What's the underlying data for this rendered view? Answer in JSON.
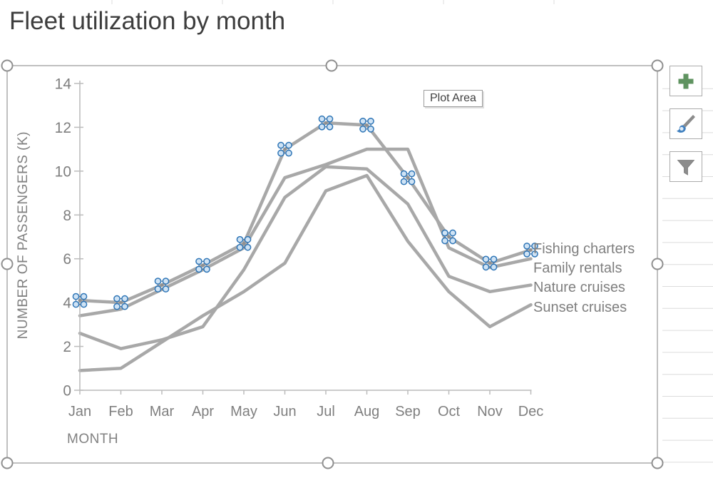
{
  "tooltip": {
    "text": "Plot Area"
  },
  "side_buttons": [
    {
      "id": "chart-elements-button",
      "icon": "plus-icon",
      "icon_color": "#5f9360"
    },
    {
      "id": "chart-styles-button",
      "icon": "paintbrush-icon",
      "icon_color": "#8c8c8c",
      "icon_accent": "#3f7fbf"
    },
    {
      "id": "chart-filters-button",
      "icon": "funnel-icon",
      "icon_color": "#8c8c8c"
    }
  ],
  "colors": {
    "series_line": "#a8a8a8",
    "selected_marker_stroke": "#2e75b6",
    "selected_marker_fill": "#cfe3f5",
    "axis": "#bcbcbc",
    "text_gray": "#7f7f7f",
    "selection_border": "#a6a6a6",
    "worksheet_gridline": "#dcdcdc"
  },
  "chart_data": {
    "type": "line",
    "title": "Fleet utilization by month",
    "xlabel": "MONTH",
    "ylabel": "NUMBER OF PASSENGERS (K)",
    "ylim": [
      0,
      14
    ],
    "y_ticks": [
      "0",
      "2",
      "4",
      "6",
      "8",
      "10",
      "12",
      "14"
    ],
    "grid": false,
    "legend_position": "end-of-line labels",
    "categories": [
      "Jan",
      "Feb",
      "Mar",
      "Apr",
      "May",
      "Jun",
      "Jul",
      "Aug",
      "Sep",
      "Oct",
      "Nov",
      "Dec"
    ],
    "series": [
      {
        "name": "Fishing charters",
        "selected": true,
        "values": [
          4.1,
          4.0,
          4.8,
          5.7,
          6.7,
          11.0,
          12.2,
          12.1,
          9.7,
          7.0,
          5.8,
          6.4
        ]
      },
      {
        "name": "Family rentals",
        "selected": false,
        "values": [
          3.4,
          3.7,
          4.6,
          5.5,
          6.5,
          9.7,
          10.3,
          11.0,
          11.0,
          6.5,
          5.6,
          6.0
        ]
      },
      {
        "name": "Nature cruises",
        "selected": false,
        "values": [
          2.6,
          1.9,
          2.3,
          2.9,
          5.5,
          8.8,
          10.2,
          10.1,
          8.5,
          5.2,
          4.5,
          4.8
        ]
      },
      {
        "name": "Sunset cruises",
        "selected": false,
        "values": [
          0.9,
          1.0,
          2.2,
          3.4,
          4.5,
          5.8,
          9.1,
          9.8,
          6.8,
          4.5,
          2.9,
          3.9
        ]
      }
    ]
  }
}
